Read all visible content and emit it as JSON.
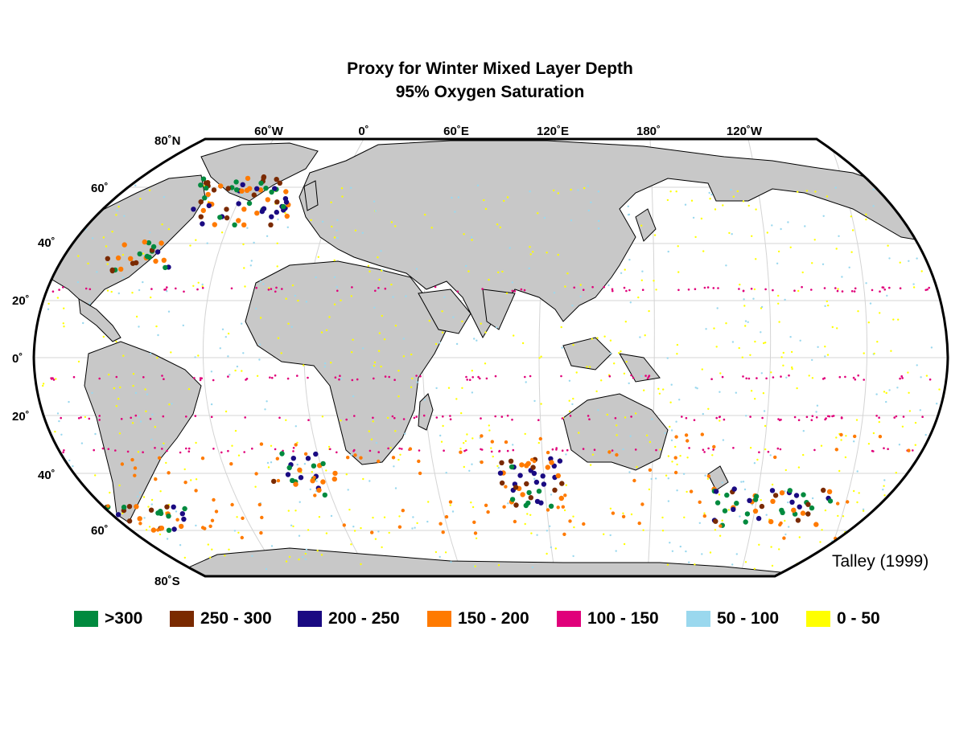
{
  "title": {
    "line1": "Proxy for Winter Mixed Layer Depth",
    "line2": "95% Oxygen Saturation"
  },
  "credit": "Talley (1999)",
  "axes": {
    "top_labels": [
      "60˚W",
      "0˚",
      "60˚E",
      "120˚E",
      "180˚",
      "120˚W"
    ],
    "left_labels": [
      "80˚N",
      "60˚",
      "40˚",
      "20˚",
      "0˚",
      "20˚",
      "40˚",
      "60˚",
      "80˚S"
    ]
  },
  "legend": [
    {
      "label": ">300",
      "color": "#008a3e"
    },
    {
      "label": "250 - 300",
      "color": "#7a2a00"
    },
    {
      "label": "200 - 250",
      "color": "#1a0a82"
    },
    {
      "label": "150 - 200",
      "color": "#ff7a00"
    },
    {
      "label": "100 - 150",
      "color": "#e0007a"
    },
    {
      "label": "50 - 100",
      "color": "#9ad8ee"
    },
    {
      "label": "0 - 50",
      "color": "#ffff00"
    }
  ],
  "colors": {
    "land": "#c8c8c8",
    "ocean": "#ffffff",
    "coast": "#000000",
    "grid": "#cfcfcf"
  }
}
